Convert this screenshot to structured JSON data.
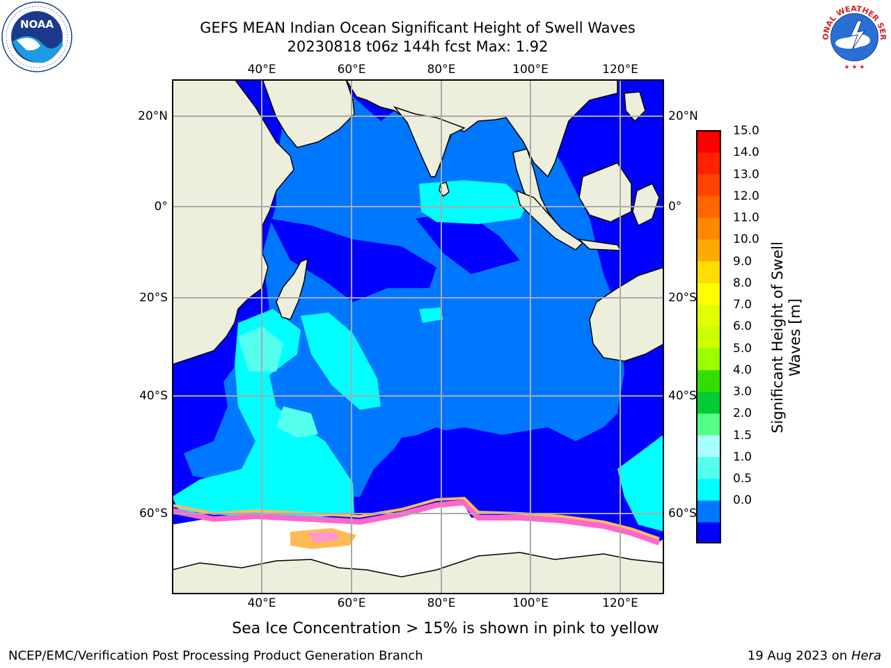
{
  "title_line1": "GEFS MEAN Indian Ocean Significant Height of Swell Waves",
  "title_line2": "20230818 t06z 144h fcst   Max: 1.92",
  "lon_ticks": [
    "40°E",
    "60°E",
    "80°E",
    "100°E",
    "120°E"
  ],
  "lat_ticks": [
    "20°N",
    "0°",
    "20°S",
    "40°S",
    "60°S"
  ],
  "colorbar": {
    "title_line1": "Significant Height of Swell",
    "title_line2": "Waves [m]",
    "levels": [
      "15.0",
      "14.0",
      "13.0",
      "12.0",
      "11.0",
      "10.0",
      "9.0",
      "8.0",
      "7.0",
      "6.0",
      "5.0",
      "4.0",
      "3.0",
      "2.0",
      "1.5",
      "1.0",
      "0.5",
      "0.0"
    ],
    "colors_top_to_bottom": [
      "#ff0000",
      "#ff2200",
      "#ff4400",
      "#ff6600",
      "#ff8800",
      "#ffaa00",
      "#ffdd00",
      "#ffff00",
      "#e0ff00",
      "#ccff00",
      "#99ff00",
      "#33dd00",
      "#00cc33",
      "#55ff88",
      "#aaffff",
      "#55ffee",
      "#00ffff",
      "#0077ff",
      "#0000ff"
    ]
  },
  "map_colors": {
    "land": "#eeeedd",
    "swell_0_0.5": "#0000ff",
    "swell_0.5_1.0": "#0077ff",
    "swell_1.0_1.5": "#00ffff",
    "swell_1.5_2.0": "#55ffee",
    "sea_ice": "#ffffff",
    "ice_edge": [
      "#ff66cc",
      "#ffbb55"
    ]
  },
  "footnote": "Sea Ice Concentration > 15% is shown in pink to yellow",
  "footer_left": "NCEP/EMC/Verification Post Processing Product Generation Branch",
  "footer_date": "19 Aug 2023 on",
  "footer_host": "Hera",
  "logos": {
    "left": "noaa-logo-icon",
    "left_text": "NOAA",
    "right": "national-weather-service-logo-icon",
    "right_text": "NATIONAL WEATHER SERVICE"
  }
}
